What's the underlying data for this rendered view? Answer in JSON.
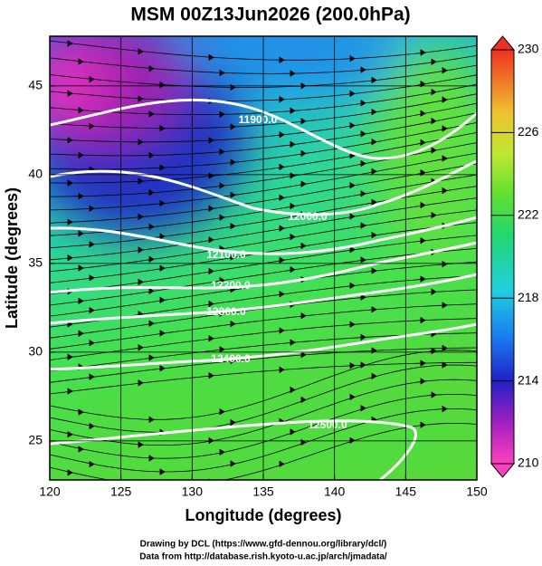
{
  "title": "MSM 00Z13Jun2026 (200.0hPa)",
  "map": {
    "x_label": "Longitude (degrees)",
    "y_label": "Latitude  (degrees)",
    "xlim": [
      120,
      150
    ],
    "ylim": [
      22.8,
      47.8
    ],
    "xticks": [
      120,
      125,
      130,
      135,
      140,
      145,
      150
    ],
    "yticks": [
      25,
      30,
      35,
      40,
      45
    ],
    "contour_labels": [
      "11900.0",
      "12000.0",
      "12100.0",
      "12200.0",
      "12300.0",
      "12400.0",
      "12500.0"
    ]
  },
  "colorbar": {
    "lim": [
      210,
      230
    ],
    "ticks": [
      210,
      214,
      218,
      222,
      226,
      230
    ]
  },
  "credits": [
    "Drawing by DCL (https://www.gfd-dennou.org/library/dcl/)",
    "Data from http://database.rish.kyoto-u.ac.jp/arch/jmadata/"
  ]
}
